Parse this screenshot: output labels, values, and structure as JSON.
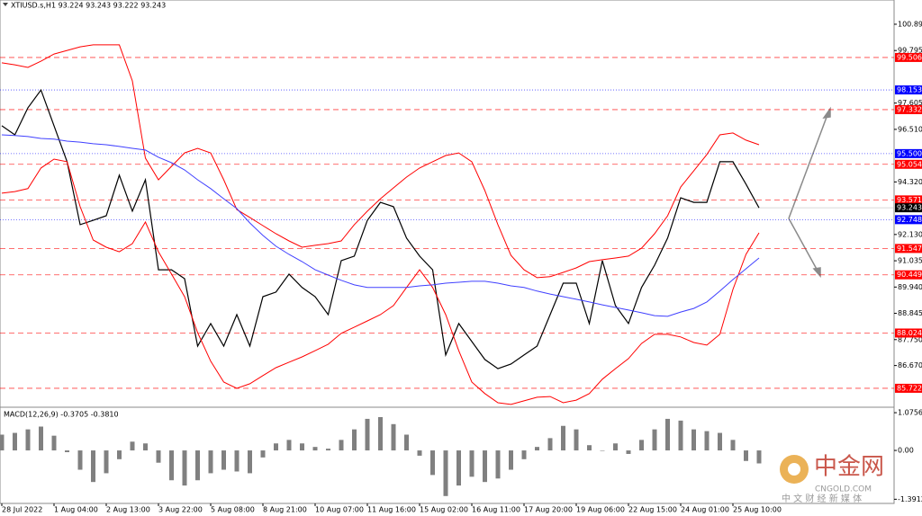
{
  "chart_data": [
    {
      "type": "line",
      "title": "XTIUSD.s,H1  93.224 93.243 93.222 93.243",
      "categories": [
        "28 Jul 2022",
        null,
        null,
        null,
        "1 Aug 04:00",
        null,
        null,
        null,
        "2 Aug 13:00",
        null,
        null,
        null,
        "3 Aug 22:00",
        null,
        null,
        null,
        "5 Aug 08:00",
        null,
        null,
        null,
        "8 Aug 21:00",
        null,
        null,
        null,
        "10 Aug 07:00",
        null,
        null,
        null,
        "11 Aug 16:00",
        null,
        null,
        null,
        "15 Aug 02:00",
        null,
        null,
        null,
        "16 Aug 11:00",
        null,
        null,
        null,
        "17 Aug 20:00",
        null,
        null,
        null,
        "19 Aug 06:00",
        null,
        null,
        null,
        "22 Aug 15:00",
        null,
        null,
        null,
        "24 Aug 01:00",
        null,
        null,
        null,
        "25 Aug 10:00",
        null,
        null
      ],
      "series": [
        {
          "color": "#000000",
          "values": [
            96.66,
            96.28,
            97.41,
            98.15,
            96.66,
            95.16,
            92.54,
            92.72,
            92.91,
            94.6,
            93.1,
            94.41,
            90.66,
            90.66,
            90.29,
            87.48,
            88.42,
            87.48,
            88.79,
            87.48,
            89.54,
            89.73,
            90.48,
            89.92,
            89.54,
            88.79,
            91.04,
            91.23,
            92.72,
            93.47,
            93.29,
            91.98,
            91.23,
            90.66,
            87.11,
            88.42,
            87.67,
            86.92,
            86.54,
            86.73,
            87.11,
            87.48,
            88.79,
            90.1,
            90.1,
            88.42,
            91.04,
            89.17,
            88.42,
            89.92,
            90.85,
            91.98,
            93.66,
            93.47,
            93.47,
            95.16,
            95.16,
            94.23,
            93.24
          ]
        },
        {
          "color": "#ff0000",
          "values": [
            99.28,
            99.2,
            99.09,
            99.35,
            99.65,
            99.8,
            99.95,
            100.03,
            100.03,
            100.03,
            98.53,
            95.31,
            94.41,
            94.97,
            95.53,
            95.72,
            95.53,
            94.41,
            93.17,
            92.84,
            92.5,
            92.16,
            91.86,
            91.6,
            91.68,
            91.75,
            91.86,
            92.54,
            93.1,
            93.62,
            94.07,
            94.52,
            94.9,
            95.16,
            95.42,
            95.53,
            95.16,
            93.96,
            92.54,
            91.26,
            90.66,
            90.33,
            90.37,
            90.55,
            90.74,
            91.0,
            91.08,
            91.15,
            91.23,
            91.56,
            92.16,
            92.91,
            94.11,
            94.78,
            95.46,
            96.28,
            96.36,
            96.06,
            95.87
          ]
        },
        {
          "color": "#ff0000",
          "values": [
            93.85,
            93.92,
            94.04,
            94.9,
            95.27,
            95.16,
            93.29,
            91.9,
            91.6,
            91.41,
            91.75,
            92.65,
            91.41,
            90.48,
            89.54,
            88.04,
            86.85,
            85.98,
            85.72,
            85.91,
            86.25,
            86.58,
            86.81,
            87.03,
            87.29,
            87.56,
            88.01,
            88.27,
            88.53,
            88.79,
            89.17,
            89.92,
            90.66,
            89.92,
            88.79,
            87.29,
            85.98,
            85.5,
            85.12,
            85.05,
            85.2,
            85.35,
            85.38,
            85.12,
            85.23,
            85.5,
            86.1,
            86.54,
            86.96,
            87.59,
            87.97,
            87.97,
            87.86,
            87.63,
            87.52,
            87.97,
            89.84,
            91.3,
            92.2
          ]
        },
        {
          "color": "#4040ff",
          "values": [
            96.28,
            96.25,
            96.21,
            96.13,
            96.1,
            96.02,
            95.98,
            95.91,
            95.87,
            95.8,
            95.72,
            95.65,
            95.35,
            95.12,
            94.82,
            94.41,
            94.04,
            93.62,
            93.21,
            92.61,
            92.09,
            91.64,
            91.3,
            91.0,
            90.66,
            90.44,
            90.22,
            90.03,
            89.92,
            89.92,
            89.92,
            89.92,
            89.99,
            90.03,
            90.1,
            90.14,
            90.18,
            90.18,
            90.1,
            89.99,
            89.92,
            89.77,
            89.65,
            89.54,
            89.43,
            89.32,
            89.2,
            89.09,
            88.98,
            88.87,
            88.75,
            88.72,
            88.9,
            89.05,
            89.32,
            89.77,
            90.25,
            90.7,
            91.15
          ]
        }
      ],
      "ylim": [
        84.97,
        101.9
      ],
      "yticks": [
        {
          "value": 100.89,
          "label": "100.890"
        },
        {
          "value": 99.795,
          "label": "99.795"
        },
        {
          "value": 97.605,
          "label": "97.605"
        },
        {
          "value": 96.51,
          "label": "96.510"
        },
        {
          "value": 94.32,
          "label": "94.320"
        },
        {
          "value": 92.13,
          "label": "92.130"
        },
        {
          "value": 91.035,
          "label": "91.035"
        },
        {
          "value": 89.94,
          "label": "89.940"
        },
        {
          "value": 88.845,
          "label": "88.845"
        },
        {
          "value": 87.75,
          "label": "87.750"
        },
        {
          "value": 86.67,
          "label": "86.670"
        }
      ],
      "levels": [
        {
          "value": 99.506,
          "color": "#ff0000"
        },
        {
          "value": 98.153,
          "color": "#0000ff"
        },
        {
          "value": 97.332,
          "color": "#ff0000"
        },
        {
          "value": 95.5,
          "label": "95.500",
          "color": "#0000ff"
        },
        {
          "value": 95.054,
          "color": "#ff0000"
        },
        {
          "value": 93.571,
          "color": "#ff0000"
        },
        {
          "value": 93.243,
          "color": "#000000"
        },
        {
          "value": 92.748,
          "color": "#0000ff"
        },
        {
          "value": 91.547,
          "color": "#ff0000"
        },
        {
          "value": 90.449,
          "color": "#ff0000"
        },
        {
          "value": 88.024,
          "color": "#ff0000"
        },
        {
          "value": 85.722,
          "color": "#ff0000"
        }
      ],
      "grid": false
    },
    {
      "type": "bar",
      "title": "MACD(12,26,9) -0.3705 -0.3810",
      "color": "#808080",
      "values": [
        0.45,
        0.5,
        0.6,
        0.68,
        0.42,
        -0.05,
        -0.55,
        -0.9,
        -0.65,
        -0.25,
        0.25,
        0.2,
        -0.35,
        -0.85,
        -1.0,
        -0.85,
        -0.65,
        -0.55,
        -0.6,
        -0.65,
        -0.2,
        0.2,
        0.3,
        0.2,
        0.1,
        0.05,
        0.3,
        0.6,
        0.9,
        0.95,
        0.75,
        0.45,
        -0.15,
        -0.7,
        -1.3,
        -1.0,
        -0.75,
        -0.9,
        -0.8,
        -0.55,
        -0.25,
        0.1,
        0.35,
        0.7,
        0.6,
        0.15,
        0.0,
        0.2,
        -0.1,
        0.3,
        0.6,
        0.9,
        0.85,
        0.6,
        0.55,
        0.5,
        0.3,
        -0.3,
        -0.37
      ],
      "ylim": [
        -1.51,
        1.18
      ],
      "yticks": [
        1.0756,
        {
          "value": 0,
          "label": "0.00"
        },
        -1.3912
      ]
    }
  ],
  "watermark": {
    "logo": "中金网",
    "site": "CNGOLD.COM",
    "tagline": "中 文 财 经 新 媒 体"
  }
}
